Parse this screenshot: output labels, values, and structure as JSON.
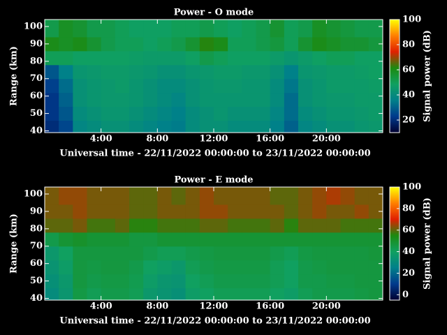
{
  "chart_data": [
    {
      "type": "heatmap",
      "title": "Power - O mode",
      "xlabel": "Universal time - 22/11/2022 00:00:00 to 23/11/2022 00:00:00",
      "ylabel": "Range (km)",
      "colorbar_label": "Signal power (dB)",
      "xbins": [
        0,
        1,
        2,
        3,
        4,
        5,
        6,
        7,
        8,
        9,
        10,
        11,
        12,
        13,
        14,
        15,
        16,
        17,
        18,
        19,
        20,
        21,
        22,
        23,
        24
      ],
      "ybins": [
        39,
        46,
        54,
        62,
        70,
        78,
        86,
        94,
        104
      ],
      "z": [
        [
          20,
          25,
          38,
          40,
          42,
          42,
          40,
          38,
          36,
          35,
          40,
          42,
          42,
          40,
          40,
          40,
          36,
          30,
          38,
          40,
          42,
          42,
          44,
          45
        ],
        [
          22,
          28,
          40,
          42,
          44,
          44,
          42,
          40,
          38,
          36,
          40,
          42,
          44,
          42,
          42,
          42,
          38,
          32,
          40,
          42,
          44,
          44,
          45,
          46
        ],
        [
          22,
          30,
          42,
          44,
          45,
          45,
          44,
          42,
          40,
          38,
          42,
          44,
          44,
          44,
          44,
          44,
          40,
          32,
          42,
          44,
          45,
          45,
          46,
          46
        ],
        [
          24,
          32,
          42,
          44,
          45,
          46,
          44,
          42,
          40,
          40,
          42,
          44,
          45,
          45,
          44,
          44,
          40,
          34,
          42,
          44,
          46,
          46,
          46,
          47
        ],
        [
          28,
          36,
          44,
          45,
          46,
          46,
          45,
          44,
          42,
          42,
          44,
          45,
          46,
          46,
          45,
          45,
          42,
          36,
          44,
          45,
          46,
          46,
          47,
          48
        ],
        [
          50,
          50,
          48,
          48,
          48,
          48,
          47,
          46,
          46,
          46,
          48,
          52,
          50,
          48,
          48,
          48,
          46,
          44,
          46,
          48,
          50,
          50,
          48,
          48
        ],
        [
          60,
          58,
          60,
          56,
          52,
          50,
          50,
          48,
          50,
          52,
          56,
          62,
          60,
          50,
          50,
          52,
          54,
          50,
          56,
          60,
          58,
          56,
          56,
          54
        ],
        [
          52,
          58,
          56,
          52,
          52,
          50,
          48,
          48,
          48,
          50,
          50,
          52,
          50,
          48,
          50,
          52,
          56,
          50,
          52,
          58,
          56,
          54,
          52,
          52
        ]
      ],
      "xlim": [
        0,
        24
      ],
      "ylim": [
        39,
        104
      ],
      "xticks": [
        {
          "value": 4,
          "label": "4:00"
        },
        {
          "value": 8,
          "label": "8:00"
        },
        {
          "value": 12,
          "label": "12:00"
        },
        {
          "value": 16,
          "label": "16:00"
        },
        {
          "value": 20,
          "label": "20:00"
        }
      ],
      "yticks": [
        40,
        50,
        60,
        70,
        80,
        90,
        100
      ],
      "clim": [
        10,
        100
      ],
      "cticks": [
        20,
        40,
        60,
        80,
        100
      ],
      "colormap": [
        "#000030",
        "#003a8c",
        "#00808a",
        "#10a060",
        "#1c8a10",
        "#e02000",
        "#ff8000",
        "#ffff00"
      ]
    },
    {
      "type": "heatmap",
      "title": "Power - E mode",
      "xlabel": "Universal time - 22/11/2022 00:00:00 to 23/11/2022 00:00:00",
      "ylabel": "Range (km)",
      "colorbar_label": "Signal power (dB)",
      "xbins": [
        0,
        1,
        2,
        3,
        4,
        5,
        6,
        7,
        8,
        9,
        10,
        11,
        12,
        13,
        14,
        15,
        16,
        17,
        18,
        19,
        20,
        21,
        22,
        23,
        24
      ],
      "ybins": [
        39,
        46,
        54,
        62,
        70,
        78,
        86,
        94,
        104
      ],
      "z": [
        [
          30,
          35,
          45,
          42,
          44,
          44,
          42,
          36,
          34,
          32,
          38,
          40,
          42,
          42,
          42,
          42,
          40,
          38,
          42,
          44,
          44,
          44,
          45,
          46
        ],
        [
          32,
          36,
          46,
          44,
          45,
          45,
          43,
          38,
          35,
          34,
          40,
          42,
          44,
          44,
          44,
          44,
          42,
          40,
          44,
          44,
          45,
          45,
          46,
          46
        ],
        [
          34,
          38,
          46,
          45,
          46,
          46,
          44,
          40,
          38,
          36,
          42,
          44,
          45,
          45,
          45,
          45,
          42,
          40,
          44,
          45,
          46,
          46,
          46,
          46
        ],
        [
          36,
          40,
          46,
          46,
          46,
          46,
          46,
          44,
          42,
          42,
          44,
          45,
          46,
          46,
          46,
          46,
          44,
          42,
          45,
          46,
          46,
          46,
          46,
          47
        ],
        [
          44,
          48,
          50,
          48,
          48,
          48,
          46,
          46,
          48,
          48,
          48,
          48,
          48,
          48,
          48,
          48,
          48,
          48,
          48,
          48,
          48,
          48,
          48,
          48
        ],
        [
          60,
          60,
          62,
          58,
          58,
          60,
          56,
          56,
          58,
          58,
          58,
          60,
          60,
          58,
          58,
          58,
          60,
          56,
          60,
          60,
          60,
          58,
          58,
          58
        ],
        [
          62,
          62,
          64,
          62,
          62,
          62,
          60,
          60,
          62,
          62,
          62,
          64,
          64,
          62,
          62,
          62,
          62,
          60,
          62,
          64,
          62,
          62,
          64,
          62
        ],
        [
          62,
          64,
          64,
          62,
          62,
          62,
          60,
          60,
          62,
          60,
          62,
          64,
          62,
          62,
          62,
          62,
          60,
          60,
          62,
          64,
          66,
          64,
          62,
          62
        ]
      ],
      "xlim": [
        0,
        24
      ],
      "ylim": [
        39,
        104
      ],
      "xticks": [
        {
          "value": 4,
          "label": "4:00"
        },
        {
          "value": 8,
          "label": "8:00"
        },
        {
          "value": 12,
          "label": "12:00"
        },
        {
          "value": 16,
          "label": "16:00"
        },
        {
          "value": 20,
          "label": "20:00"
        }
      ],
      "yticks": [
        40,
        50,
        60,
        70,
        80,
        90,
        100
      ],
      "clim": [
        -5,
        100
      ],
      "cticks": [
        0,
        20,
        40,
        60,
        80,
        100
      ],
      "colormap": [
        "#000030",
        "#003a8c",
        "#00808a",
        "#10a060",
        "#1c8a10",
        "#e02000",
        "#ff8000",
        "#ffff00"
      ]
    }
  ]
}
